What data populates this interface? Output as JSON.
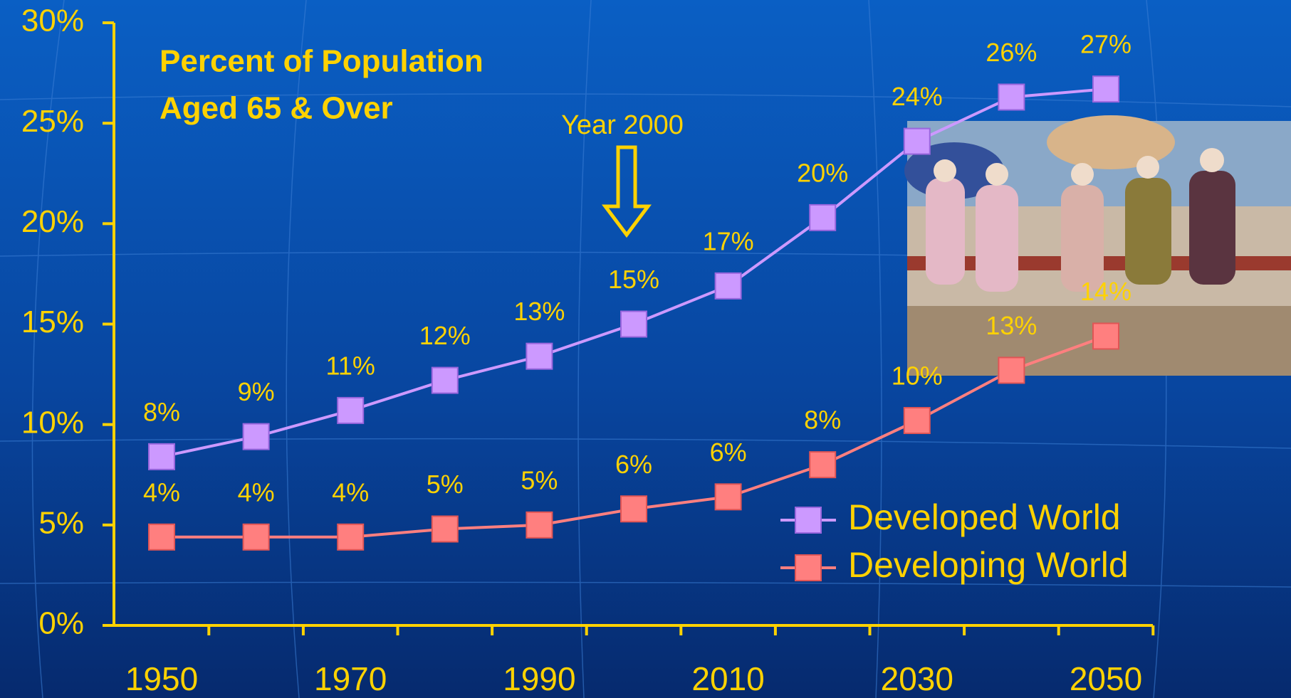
{
  "chart_data": {
    "type": "line",
    "title": [
      "Percent of Population",
      "Aged 65 & Over"
    ],
    "annotation": "Year 2000",
    "categories": [
      "1950",
      null,
      "1970",
      null,
      "1990",
      null,
      "2010",
      null,
      "2030",
      null,
      "2050"
    ],
    "series": [
      {
        "name": "Developed World",
        "color": "#cc99ff",
        "values": [
          8.4,
          9.4,
          10.7,
          12.2,
          13.4,
          15.0,
          16.9,
          20.3,
          24.1,
          26.3,
          26.7
        ],
        "value_labels": [
          "8%",
          "9%",
          "11%",
          "12%",
          "13%",
          "15%",
          "17%",
          "20%",
          "24%",
          "26%",
          "27%"
        ]
      },
      {
        "name": "Developing World",
        "color": "#ff7f7f",
        "values": [
          4.4,
          4.4,
          4.4,
          4.8,
          5.0,
          5.8,
          6.4,
          8.0,
          10.2,
          12.7,
          14.4
        ],
        "value_labels": [
          "4%",
          "4%",
          "4%",
          "5%",
          "5%",
          "6%",
          "6%",
          "8%",
          "10%",
          "13%",
          "14%"
        ]
      }
    ],
    "ylim": [
      0,
      30
    ],
    "yticks": [
      {
        "value": 0,
        "label": "0%"
      },
      {
        "value": 5,
        "label": "5%"
      },
      {
        "value": 10,
        "label": "10%"
      },
      {
        "value": 15,
        "label": "15%"
      },
      {
        "value": 20,
        "label": "20%"
      },
      {
        "value": 25,
        "label": "25%"
      },
      {
        "value": 30,
        "label": "30%"
      }
    ],
    "legend": "lower right"
  }
}
